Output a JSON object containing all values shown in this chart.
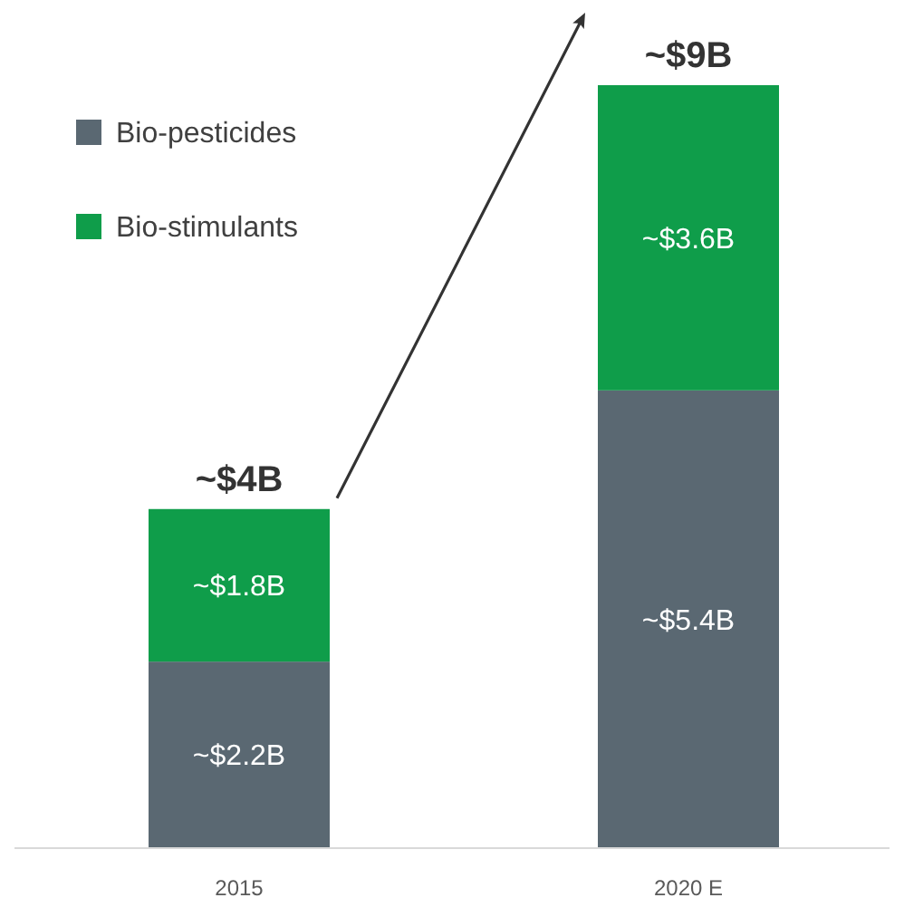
{
  "chart_data": {
    "type": "bar",
    "stacked": true,
    "categories": [
      "2015",
      "2020 E"
    ],
    "series": [
      {
        "name": "Bio-pesticides",
        "color": "#5a6872",
        "values": [
          2.2,
          5.4
        ],
        "value_labels": [
          "~$2.2B",
          "~$5.4B"
        ]
      },
      {
        "name": "Bio-stimulants",
        "color": "#0f9d4a",
        "values": [
          1.8,
          3.6
        ],
        "value_labels": [
          "~$1.8B",
          "~$3.6B"
        ]
      }
    ],
    "totals": [
      "~$4B",
      "~$9B"
    ],
    "legend": "top left"
  }
}
